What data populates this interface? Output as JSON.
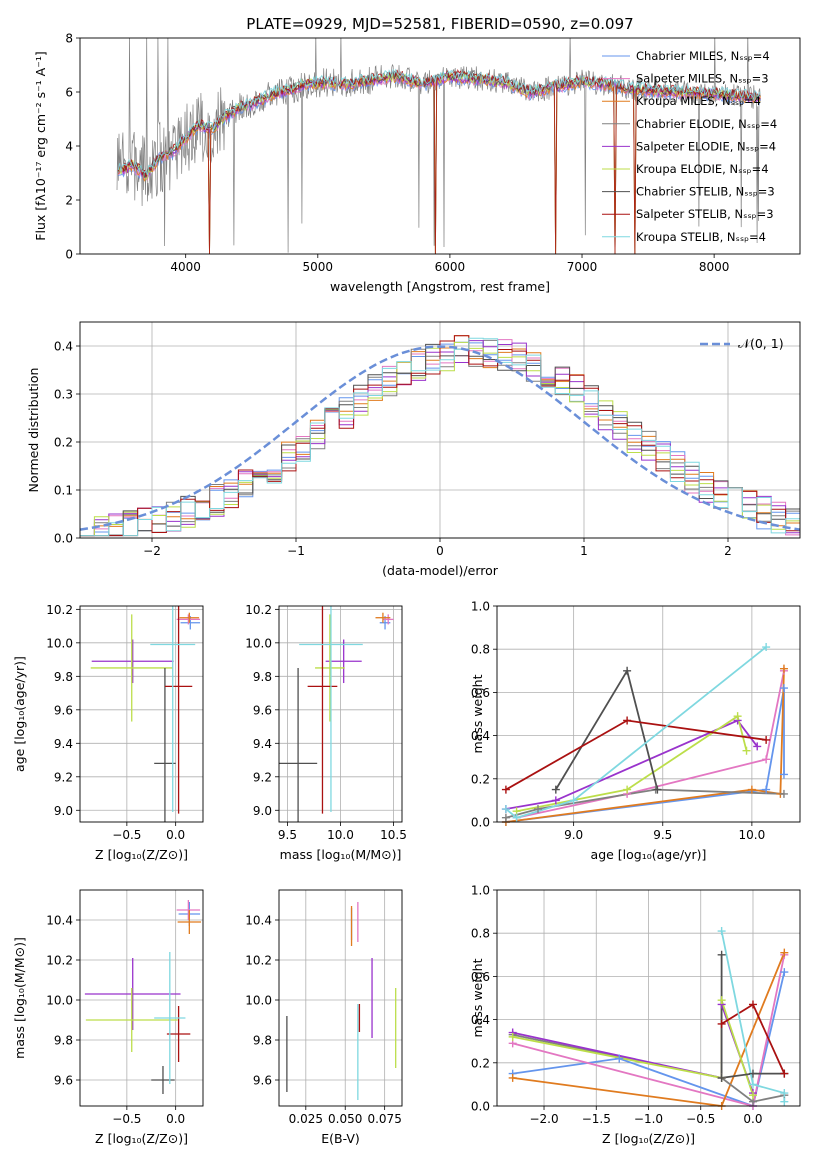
{
  "colors": {
    "Chabrier MILES": "#6495ed",
    "Salpeter MILES": "#e377c2",
    "Kroupa MILES": "#e07b1f",
    "Chabrier ELODIE": "#808080",
    "Salpeter ELODIE": "#9933cc",
    "Kroupa ELODIE": "#bcde4a",
    "Chabrier STELIB": "#505050",
    "Salpeter STELIB": "#aa1111",
    "Kroupa STELIB": "#7fd8e0",
    "normal": "#6a8fd8"
  },
  "chart_data": [
    {
      "id": "spectrum",
      "type": "line",
      "title": "PLATE=0929, MJD=52581, FIBERID=0590, z=0.097",
      "xlabel": "wavelength [Angstrom, rest frame]",
      "ylabel": "Flux [fλ10⁻¹⁷ erg cm⁻² s⁻¹ A⁻¹]",
      "xlim": [
        3200,
        8650
      ],
      "ylim": [
        0,
        8
      ],
      "xticks": [
        "4000",
        "5000",
        "6000",
        "7000",
        "8000"
      ],
      "yticks": [
        "0",
        "2",
        "4",
        "6",
        "8"
      ],
      "legend_position": "upper right",
      "legend": [
        "Chabrier MILES, Nₛₛₚ=4",
        "Salpeter MILES, Nₛₛₚ=3",
        "Kroupa MILES, Nₛₛₚ=4",
        "Chabrier ELODIE, Nₛₛₚ=4",
        "Salpeter ELODIE, Nₛₛₚ=4",
        "Kroupa ELODIE, Nₛₛₚ=4",
        "Chabrier STELIB, Nₛₛₚ=3",
        "Salpeter STELIB, Nₛₛₚ=3",
        "Kroupa STELIB, Nₛₛₚ=4"
      ],
      "continuum_x": [
        3500,
        3600,
        3700,
        3800,
        3900,
        4000,
        4100,
        4200,
        4300,
        4400,
        4500,
        4600,
        4700,
        4800,
        4900,
        5000,
        5200,
        5400,
        5600,
        5800,
        6000,
        6200,
        6400,
        6600,
        6800,
        7000,
        7200,
        7400,
        7600,
        7800,
        8000,
        8200,
        8350
      ],
      "continuum_y": [
        3.1,
        3.3,
        2.9,
        3.6,
        3.8,
        4.3,
        4.8,
        4.6,
        5.1,
        5.4,
        5.6,
        5.8,
        6.0,
        6.1,
        6.3,
        6.35,
        6.3,
        6.45,
        6.6,
        6.3,
        6.6,
        6.5,
        6.4,
        6.0,
        6.2,
        6.4,
        6.3,
        6.1,
        6.05,
        6.0,
        5.95,
        5.85,
        5.8
      ]
    },
    {
      "id": "residuals",
      "type": "line",
      "xlabel": "(data-model)/error",
      "ylabel": "Normed distribution",
      "xlim": [
        -2.5,
        2.5
      ],
      "ylim": [
        0,
        0.45
      ],
      "xticks": [
        "−2",
        "−1",
        "0",
        "1",
        "2"
      ],
      "yticks": [
        "0.0",
        "0.1",
        "0.2",
        "0.3",
        "0.4"
      ],
      "legend": [
        "𝒩(0, 1)"
      ],
      "legend_position": "upper right",
      "grid": true
    },
    {
      "id": "age_vs_Z",
      "type": "scatter",
      "xlabel": "Z [log₁₀(Z/Z⊙)]",
      "ylabel": "age  [log₁₀(age/yr)]",
      "xlim": [
        -0.98,
        0.28
      ],
      "ylim": [
        8.93,
        10.22
      ],
      "xticks": [
        "−0.5",
        "0.0"
      ],
      "yticks": [
        "9.0",
        "9.2",
        "9.4",
        "9.6",
        "9.8",
        "10.0",
        "10.2"
      ],
      "grid": true,
      "points": [
        {
          "series": "Chabrier MILES",
          "x": 0.15,
          "y": 10.12,
          "xerr": 0.1,
          "yerr": 0.04
        },
        {
          "series": "Salpeter MILES",
          "x": 0.13,
          "y": 10.14,
          "xerr": 0.12,
          "yerr": 0.03
        },
        {
          "series": "Kroupa MILES",
          "x": 0.14,
          "y": 10.15,
          "xerr": 0.1,
          "yerr": 0.03
        },
        {
          "series": "Salpeter ELODIE",
          "x": -0.44,
          "y": 9.89,
          "xerr": 0.42,
          "yerr": 0.13
        },
        {
          "series": "Kroupa ELODIE",
          "x": -0.45,
          "y": 9.85,
          "xerr": 0.42,
          "yerr": 0.32
        },
        {
          "series": "Chabrier STELIB",
          "x": -0.11,
          "y": 9.28,
          "xerr": 0.11,
          "yerr": 0.57
        },
        {
          "series": "Salpeter STELIB",
          "x": 0.03,
          "y": 9.74,
          "xerr": 0.14,
          "yerr": 0.76
        },
        {
          "series": "Kroupa STELIB",
          "x": -0.03,
          "y": 9.99,
          "xerr": 0.23,
          "yerr": 1.0
        }
      ]
    },
    {
      "id": "age_vs_mass",
      "type": "scatter",
      "xlabel": "mass [log₁₀(M/M⊙)]",
      "xlim": [
        9.42,
        10.58
      ],
      "ylim": [
        8.93,
        10.22
      ],
      "xticks": [
        "9.5",
        "10.0",
        "10.5"
      ],
      "yticks": [
        "9.0",
        "9.2",
        "9.4",
        "9.6",
        "9.8",
        "10.0",
        "10.2"
      ],
      "grid": true,
      "points": [
        {
          "series": "Chabrier MILES",
          "x": 10.42,
          "y": 10.12,
          "xerr": 0.05,
          "yerr": 0.04
        },
        {
          "series": "Salpeter MILES",
          "x": 10.45,
          "y": 10.14,
          "xerr": 0.05,
          "yerr": 0.03
        },
        {
          "series": "Kroupa MILES",
          "x": 10.4,
          "y": 10.15,
          "xerr": 0.07,
          "yerr": 0.03
        },
        {
          "series": "Salpeter ELODIE",
          "x": 10.03,
          "y": 9.89,
          "xerr": 0.17,
          "yerr": 0.13
        },
        {
          "series": "Kroupa ELODIE",
          "x": 9.9,
          "y": 9.85,
          "xerr": 0.14,
          "yerr": 0.32
        },
        {
          "series": "Chabrier STELIB",
          "x": 9.6,
          "y": 9.28,
          "xerr": 0.18,
          "yerr": 0.57
        },
        {
          "series": "Salpeter STELIB",
          "x": 9.83,
          "y": 9.74,
          "xerr": 0.14,
          "yerr": 0.76
        },
        {
          "series": "Kroupa STELIB",
          "x": 9.91,
          "y": 9.99,
          "xerr": 0.3,
          "yerr": 1.0
        }
      ]
    },
    {
      "id": "weight_vs_age",
      "type": "line",
      "xlabel": "age  [log₁₀(age/yr)]",
      "ylabel": "mass weight",
      "xlim": [
        8.57,
        10.27
      ],
      "ylim": [
        0,
        1.0
      ],
      "xticks": [
        "9.0",
        "9.5",
        "10.0"
      ],
      "yticks": [
        "0.0",
        "0.2",
        "0.4",
        "0.6",
        "0.8",
        "1.0"
      ],
      "grid": true,
      "series": [
        {
          "name": "Chabrier MILES",
          "x": [
            8.62,
            10.08,
            10.18,
            10.18
          ],
          "y": [
            0.0,
            0.15,
            0.62,
            0.22
          ]
        },
        {
          "name": "Salpeter MILES",
          "x": [
            8.68,
            9.3,
            10.08,
            10.18
          ],
          "y": [
            0.02,
            0.13,
            0.29,
            0.7
          ]
        },
        {
          "name": "Kroupa MILES",
          "x": [
            8.62,
            10.0,
            10.16,
            10.18
          ],
          "y": [
            0.0,
            0.15,
            0.13,
            0.71
          ]
        },
        {
          "name": "Chabrier ELODIE",
          "x": [
            8.62,
            8.8,
            9.46,
            10.18
          ],
          "y": [
            0.02,
            0.06,
            0.15,
            0.13
          ]
        },
        {
          "name": "Salpeter ELODIE",
          "x": [
            8.62,
            8.9,
            9.92,
            10.03
          ],
          "y": [
            0.06,
            0.1,
            0.47,
            0.35
          ]
        },
        {
          "name": "Kroupa ELODIE",
          "x": [
            8.68,
            9.3,
            9.92,
            9.97
          ],
          "y": [
            0.05,
            0.15,
            0.49,
            0.33
          ]
        },
        {
          "name": "Chabrier STELIB",
          "x": [
            8.9,
            9.3,
            9.47
          ],
          "y": [
            0.15,
            0.7,
            0.15
          ]
        },
        {
          "name": "Salpeter STELIB",
          "x": [
            8.62,
            9.3,
            10.08
          ],
          "y": [
            0.15,
            0.47,
            0.38
          ]
        },
        {
          "name": "Kroupa STELIB",
          "x": [
            8.62,
            8.68,
            9.0,
            10.08
          ],
          "y": [
            0.06,
            0.02,
            0.1,
            0.81
          ]
        }
      ]
    },
    {
      "id": "mass_vs_Z",
      "type": "scatter",
      "xlabel": "Z [log₁₀(Z/Z⊙)]",
      "ylabel": "mass [log₁₀(M/M⊙)]",
      "xlim": [
        -0.98,
        0.28
      ],
      "ylim": [
        9.47,
        10.55
      ],
      "xticks": [
        "−0.5",
        "0.0"
      ],
      "yticks": [
        "9.6",
        "9.8",
        "10.0",
        "10.2",
        "10.4"
      ],
      "grid": true,
      "points": [
        {
          "series": "Chabrier MILES",
          "x": 0.14,
          "y": 10.43,
          "xerr": 0.11,
          "yerr": 0.06
        },
        {
          "series": "Salpeter MILES",
          "x": 0.13,
          "y": 10.45,
          "xerr": 0.12,
          "yerr": 0.05
        },
        {
          "series": "Kroupa MILES",
          "x": 0.14,
          "y": 10.39,
          "xerr": 0.12,
          "yerr": 0.06
        },
        {
          "series": "Salpeter ELODIE",
          "x": -0.44,
          "y": 10.03,
          "xerr": 0.49,
          "yerr": 0.18
        },
        {
          "series": "Kroupa ELODIE",
          "x": -0.45,
          "y": 9.9,
          "xerr": 0.47,
          "yerr": 0.16
        },
        {
          "series": "Chabrier STELIB",
          "x": -0.13,
          "y": 9.6,
          "xerr": 0.12,
          "yerr": 0.07
        },
        {
          "series": "Salpeter STELIB",
          "x": 0.03,
          "y": 9.83,
          "xerr": 0.12,
          "yerr": 0.14
        },
        {
          "series": "Kroupa STELIB",
          "x": -0.06,
          "y": 9.91,
          "xerr": 0.16,
          "yerr": 0.33
        }
      ]
    },
    {
      "id": "mass_vs_ebv",
      "type": "scatter",
      "xlabel": "E(B-V)",
      "xlim": [
        0.008,
        0.086
      ],
      "ylim": [
        9.47,
        10.55
      ],
      "xticks": [
        "0.025",
        "0.050",
        "0.075"
      ],
      "yticks": [
        "9.6",
        "9.8",
        "10.0",
        "10.2",
        "10.4"
      ],
      "grid": true,
      "points": [
        {
          "series": "Chabrier STELIB",
          "x": 0.013,
          "y": 9.73,
          "yerr": 0.19
        },
        {
          "series": "Chabrier MILES",
          "x": 0.054,
          "y": 10.38,
          "yerr": 0.08
        },
        {
          "series": "Kroupa MILES",
          "x": 0.054,
          "y": 10.37,
          "yerr": 0.1
        },
        {
          "series": "Salpeter MILES",
          "x": 0.058,
          "y": 10.39,
          "yerr": 0.1
        },
        {
          "series": "Kroupa STELIB",
          "x": 0.058,
          "y": 9.74,
          "yerr": 0.24
        },
        {
          "series": "Salpeter STELIB",
          "x": 0.059,
          "y": 9.91,
          "yerr": 0.07
        },
        {
          "series": "Salpeter ELODIE",
          "x": 0.067,
          "y": 10.01,
          "yerr": 0.2
        },
        {
          "series": "Kroupa ELODIE",
          "x": 0.082,
          "y": 9.86,
          "yerr": 0.2
        }
      ]
    },
    {
      "id": "weight_vs_Z",
      "type": "line",
      "xlabel": "Z [log₁₀(Z/Z⊙)]",
      "ylabel": "mass weight",
      "xlim": [
        -2.45,
        0.45
      ],
      "ylim": [
        0,
        1.0
      ],
      "xticks": [
        "−2.0",
        "−1.5",
        "−1.0",
        "−0.5",
        "0.0"
      ],
      "yticks": [
        "0.0",
        "0.2",
        "0.4",
        "0.6",
        "0.8",
        "1.0"
      ],
      "grid": true,
      "series": [
        {
          "name": "Chabrier MILES",
          "x": [
            -2.3,
            -1.28,
            0.0,
            0.3
          ],
          "y": [
            0.15,
            0.22,
            0.0,
            0.62
          ]
        },
        {
          "name": "Salpeter MILES",
          "x": [
            -2.3,
            0.0,
            0.3
          ],
          "y": [
            0.29,
            0.0,
            0.7
          ]
        },
        {
          "name": "Kroupa MILES",
          "x": [
            -2.3,
            -0.3,
            0.3
          ],
          "y": [
            0.13,
            0.0,
            0.71
          ]
        },
        {
          "name": "Chabrier ELODIE",
          "x": [
            -2.3,
            -0.3,
            0.0,
            0.3
          ],
          "y": [
            0.33,
            0.13,
            0.02,
            0.05
          ]
        },
        {
          "name": "Salpeter ELODIE",
          "x": [
            -2.3,
            -0.3,
            -0.3,
            0.0
          ],
          "y": [
            0.34,
            0.13,
            0.47,
            0.06
          ]
        },
        {
          "name": "Kroupa ELODIE",
          "x": [
            -2.3,
            -0.3,
            -0.3,
            0.0
          ],
          "y": [
            0.32,
            0.13,
            0.49,
            0.05
          ]
        },
        {
          "name": "Chabrier STELIB",
          "x": [
            -0.3,
            -0.3,
            0.0,
            0.3
          ],
          "y": [
            0.7,
            0.13,
            0.15,
            0.15
          ]
        },
        {
          "name": "Salpeter STELIB",
          "x": [
            -0.3,
            0.0,
            0.3
          ],
          "y": [
            0.38,
            0.47,
            0.15
          ]
        },
        {
          "name": "Kroupa STELIB",
          "x": [
            -0.3,
            0.0,
            0.3,
            0.3
          ],
          "y": [
            0.81,
            0.1,
            0.06,
            0.02
          ]
        }
      ]
    }
  ]
}
